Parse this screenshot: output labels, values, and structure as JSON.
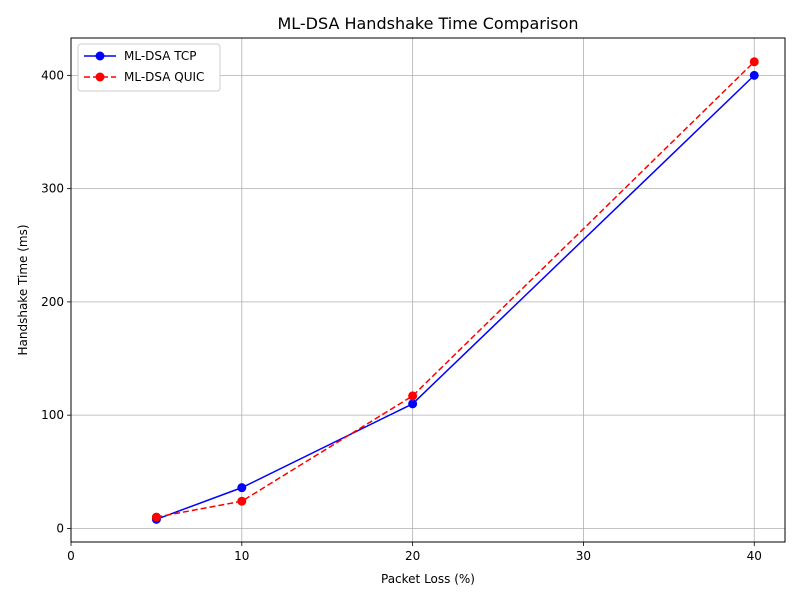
{
  "chart_data": {
    "type": "line",
    "title": "ML-DSA Handshake Time Comparison",
    "xlabel": "Packet Loss (%)",
    "ylabel": "Handshake Time (ms)",
    "xlim": [
      0,
      41.8
    ],
    "ylim": [
      -12,
      433
    ],
    "xticks": [
      0,
      10,
      20,
      30,
      40
    ],
    "yticks": [
      0,
      100,
      200,
      300,
      400
    ],
    "grid": true,
    "legend_position": "top-left",
    "series": [
      {
        "name": "ML-DSA TCP",
        "color": "#0000ff",
        "line_style": "solid",
        "marker": "circle",
        "x": [
          5,
          10,
          20,
          40
        ],
        "y": [
          8,
          36,
          110,
          400
        ]
      },
      {
        "name": "ML-DSA QUIC",
        "color": "#ff0000",
        "line_style": "dashed",
        "marker": "circle",
        "x": [
          5,
          10,
          20,
          40
        ],
        "y": [
          10,
          24,
          117,
          412
        ]
      }
    ]
  }
}
